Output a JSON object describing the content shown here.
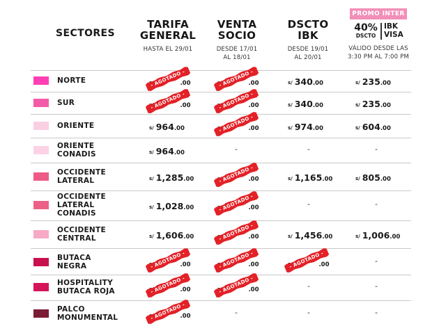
{
  "columns": {
    "sectores": "SECTORES",
    "general": {
      "title_1": "TARIFA",
      "title_2": "GENERAL",
      "sub_1": "HASTA EL 29/01",
      "sub_2": ""
    },
    "socio": {
      "title_1": "VENTA",
      "title_2": "SOCIO",
      "sub_1": "DESDE 17/01",
      "sub_2": "AL 18/01"
    },
    "ibk": {
      "title_1": "DSCTO",
      "title_2": "IBK",
      "sub_1": "DESDE 19/01",
      "sub_2": "AL 20/01"
    },
    "promo": {
      "badge": "PROMO INTER",
      "pct": "40%",
      "pct_label": "DSCTO",
      "brand_1": "IBK",
      "brand_2": "VISA",
      "sub_1": "VÁLIDO DESDE LAS",
      "sub_2": "3:30 PM AL 7:00 PM"
    }
  },
  "currency": "s/",
  "stamp_text": "- AGOTADO -",
  "dash": "-",
  "rows": [
    {
      "name_1": "NORTE",
      "name_2": "",
      "color": "#ff3fb4",
      "general": {
        "amt": "3",
        "dec": ".00",
        "soldout": true
      },
      "socio": {
        "amt": "3",
        "dec": ".00",
        "soldout": true
      },
      "ibk": {
        "amt": "340",
        "dec": ".00",
        "soldout": false
      },
      "promo": {
        "amt": "235",
        "dec": ".00",
        "soldout": false
      }
    },
    {
      "name_1": "SUR",
      "name_2": "",
      "color": "#f55aa8",
      "general": {
        "amt": "3",
        "dec": ".00",
        "soldout": true
      },
      "socio": {
        "amt": "3",
        "dec": ".00",
        "soldout": true
      },
      "ibk": {
        "amt": "340",
        "dec": ".00",
        "soldout": false
      },
      "promo": {
        "amt": "235",
        "dec": ".00",
        "soldout": false
      }
    },
    {
      "name_1": "ORIENTE",
      "name_2": "",
      "color": "#f9cfe2",
      "general": {
        "amt": "964",
        "dec": ".00",
        "soldout": false
      },
      "socio": {
        "amt": "9",
        "dec": ".00",
        "soldout": true
      },
      "ibk": {
        "amt": "974",
        "dec": ".00",
        "soldout": false
      },
      "promo": {
        "amt": "604",
        "dec": ".00",
        "soldout": false
      }
    },
    {
      "name_1": "ORIENTE",
      "name_2": "CONADIS",
      "color": "#fbd3e4",
      "general": {
        "amt": "964",
        "dec": ".00",
        "soldout": false
      },
      "socio": null,
      "ibk": null,
      "promo": null
    },
    {
      "name_1": "OCCIDENTE",
      "name_2": "LATERAL",
      "color": "#ee5b87",
      "general": {
        "amt": "1,285",
        "dec": ".00",
        "soldout": false
      },
      "socio": {
        "amt": "1",
        "dec": ".00",
        "soldout": true
      },
      "ibk": {
        "amt": "1,165",
        "dec": ".00",
        "soldout": false
      },
      "promo": {
        "amt": "805",
        "dec": ".00",
        "soldout": false
      }
    },
    {
      "name_1": "OCCIDENTE",
      "name_2": "LATERAL",
      "name_3": "CONADIS",
      "color": "#ec5f86",
      "general": {
        "amt": "1,028",
        "dec": ".00",
        "soldout": false
      },
      "socio": {
        "amt": "1",
        "dec": ".00",
        "soldout": true
      },
      "ibk": null,
      "promo": null
    },
    {
      "name_1": "OCCIDENTE",
      "name_2": "CENTRAL",
      "color": "#f7a9c6",
      "general": {
        "amt": "1,606",
        "dec": ".00",
        "soldout": false
      },
      "socio": {
        "amt": "1",
        "dec": ".00",
        "soldout": true
      },
      "ibk": {
        "amt": "1,456",
        "dec": ".00",
        "soldout": false
      },
      "promo": {
        "amt": "1,006",
        "dec": ".00",
        "soldout": false
      }
    },
    {
      "name_1": "BUTACA",
      "name_2": "NEGRA",
      "color": "#c8104f",
      "general": {
        "amt": "1",
        "dec": ".00",
        "soldout": true
      },
      "socio": {
        "amt": "1",
        "dec": ".00",
        "soldout": true
      },
      "ibk": {
        "amt": "1",
        "dec": ".00",
        "soldout": true
      },
      "promo": null
    },
    {
      "name_1": "HOSPITALITY",
      "name_2": "BUTACA ROJA",
      "color": "#d4145a",
      "general": {
        "amt": "2",
        "dec": ".00",
        "soldout": true
      },
      "socio": {
        "amt": "2",
        "dec": ".00",
        "soldout": true
      },
      "ibk": null,
      "promo": null
    },
    {
      "name_1": "PALCO",
      "name_2": "MONUMENTAL",
      "color": "#7b1c35",
      "general": {
        "amt": "1",
        "dec": ".00",
        "soldout": true
      },
      "socio": null,
      "ibk": null,
      "promo": null
    }
  ]
}
